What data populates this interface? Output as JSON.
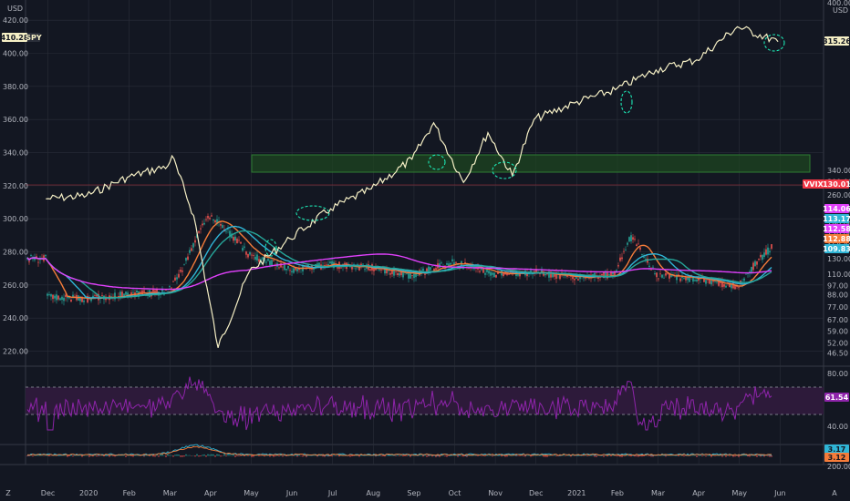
{
  "colors": {
    "background": "#131722",
    "grid": "#2a2e39",
    "text": "#b2b5be",
    "spy": "#f5efc5",
    "ma_pink": "#e040fb",
    "ma_blue": "#2fb5d6",
    "ma_orange": "#f57c3a",
    "ma_teal": "#26a69a",
    "up": "#26a69a",
    "down": "#ef5350",
    "rsi_line": "#8e24aa",
    "rsi_band": "#2d1a3a",
    "zone": "#1e4620",
    "annotation": "#1de9b6",
    "vvix_line": "#f23645"
  },
  "left_axis": {
    "label": "USD",
    "ticks": [
      "420.00",
      "400.00",
      "380.00",
      "360.00",
      "340.00",
      "320.00",
      "300.00",
      "280.00",
      "260.00",
      "240.00",
      "220.00"
    ],
    "ylim": [
      212,
      430
    ]
  },
  "right_axis": {
    "labels": [
      "400.00",
      "USD"
    ],
    "ticks": [
      "340.00",
      "300.00",
      "260.00",
      "220.00",
      "190.00",
      "170.00",
      "150.00",
      "130.00",
      "110.00",
      "97.00",
      "88.00",
      "77.00",
      "67.00",
      "59.00",
      "52.00",
      "46.50"
    ]
  },
  "rsi_axis": {
    "ticks": [
      "80.00",
      "40.00"
    ],
    "overbought": 70,
    "oversold": 30,
    "value": "61.54"
  },
  "macd_axis": {
    "ticks": [
      "200.00"
    ]
  },
  "x_axis": {
    "ticks": [
      "Dec",
      "2020",
      "Feb",
      "Mar",
      "Apr",
      "May",
      "Jun",
      "Jul",
      "Aug",
      "Sep",
      "Oct",
      "Nov",
      "Dec",
      "2021",
      "Feb",
      "Mar",
      "Apr",
      "May",
      "Jun"
    ]
  },
  "badges": {
    "spy_left": {
      "value": "410.28",
      "symbol": "SPY"
    },
    "spy_right": "315.26",
    "vvix": {
      "symbol": "VVIX",
      "value": "130.01"
    },
    "ma_values": [
      "114.06",
      "113.17",
      "112.58",
      "112.88",
      "109.83"
    ],
    "rsi": "61.54",
    "macd": [
      "3.17",
      "3.12"
    ]
  },
  "footer": {
    "left_icon": "Z",
    "right_icon": "A"
  },
  "chart_data": {
    "type": "line",
    "series": [
      {
        "name": "SPY",
        "x": [
          "2019-11",
          "2019-12",
          "2020-01",
          "2020-02",
          "2020-02-19",
          "2020-03-05",
          "2020-03-23",
          "2020-04",
          "2020-05",
          "2020-06",
          "2020-07",
          "2020-08",
          "2020-09-02",
          "2020-09-24",
          "2020-10-12",
          "2020-10-30",
          "2020-11",
          "2020-12",
          "2021-01",
          "2021-02",
          "2021-03",
          "2021-04",
          "2021-05"
        ],
        "values": [
          312,
          314,
          325,
          332,
          338,
          302,
          222,
          268,
          288,
          306,
          318,
          336,
          358,
          322,
          352,
          326,
          360,
          370,
          378,
          390,
          396,
          416,
          407
        ]
      },
      {
        "name": "VVIX",
        "x": [
          "2019-11",
          "2019-12",
          "2020-01",
          "2020-02",
          "2020-02-27",
          "2020-03-16",
          "2020-04",
          "2020-05",
          "2020-06",
          "2020-07",
          "2020-08",
          "2020-09",
          "2020-10",
          "2020-11",
          "2020-12",
          "2021-01",
          "2021-01-27",
          "2021-02",
          "2021-03",
          "2021-04",
          "2021-05-12",
          "2021-05"
        ],
        "values": [
          86,
          84,
          88,
          90,
          115,
          207,
          135,
          115,
          122,
          118,
          108,
          125,
          110,
          112,
          106,
          110,
          165,
          108,
          104,
          96,
          148,
          130
        ]
      }
    ],
    "rsi": {
      "value": 61.54,
      "levels": [
        80,
        70,
        30,
        40
      ]
    },
    "annotations": [
      "support-zone",
      "ellipse-markers"
    ]
  }
}
